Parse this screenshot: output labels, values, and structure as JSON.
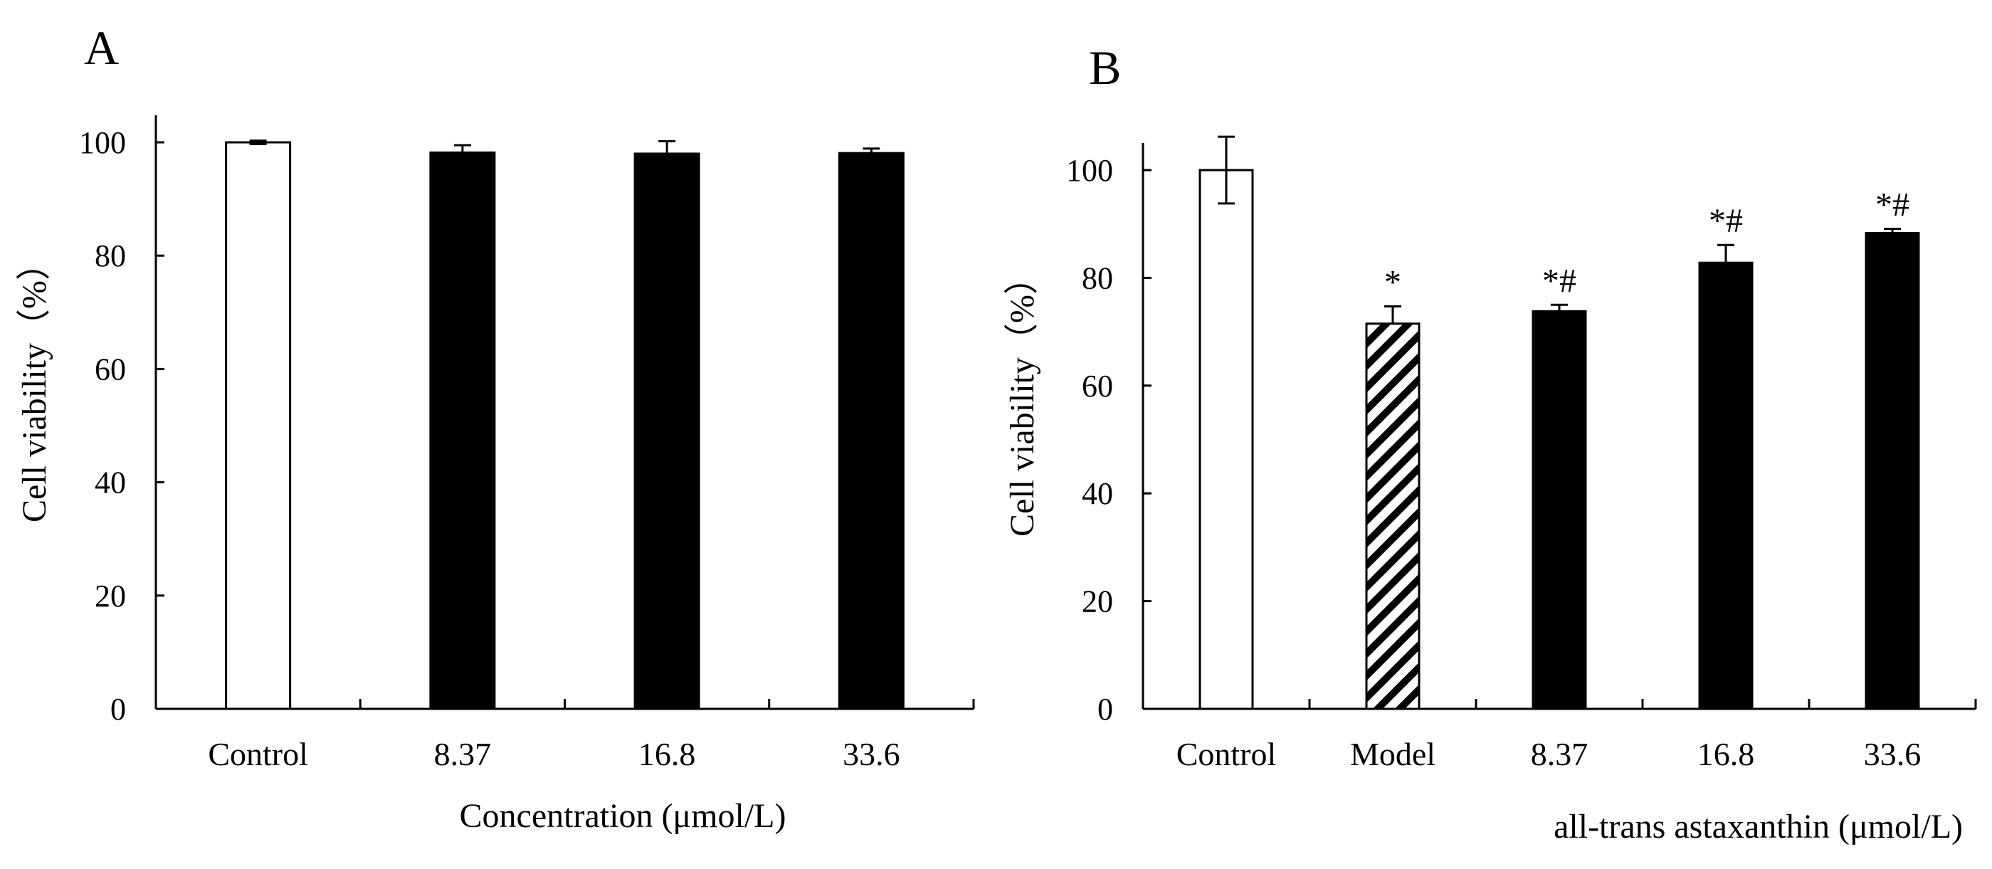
{
  "colors": {
    "axis": "#000000",
    "bar_fill": "#000000",
    "bar_open": "#ffffff"
  },
  "chart_data": [
    {
      "panel_label": "A",
      "type": "bar",
      "categories": [
        "Control",
        "8.37",
        "16.8",
        "33.6"
      ],
      "values": [
        100,
        98.2,
        98,
        98.1
      ],
      "errors": [
        0.3,
        1.3,
        2.2,
        0.8
      ],
      "fills": [
        "open",
        "solid",
        "solid",
        "solid"
      ],
      "markers": [
        "",
        "",
        "",
        ""
      ],
      "ylabel": "Cell viability（%）",
      "xlabel": "Concentration (μmol/L)",
      "ylim": [
        0,
        100
      ],
      "yticks": [
        0,
        20,
        40,
        60,
        80,
        100
      ]
    },
    {
      "panel_label": "B",
      "type": "bar",
      "categories": [
        "Control",
        "Model",
        "8.37",
        "16.8",
        "33.6"
      ],
      "values": [
        100,
        71.5,
        73.8,
        82.8,
        88.3
      ],
      "errors": [
        6.2,
        3.2,
        1.2,
        3.3,
        0.8
      ],
      "fills": [
        "open",
        "hatched",
        "solid",
        "solid",
        "solid"
      ],
      "markers": [
        "",
        "*",
        "*#",
        "*#",
        "*#"
      ],
      "ylabel": "Cell viability（%）",
      "xlabel": "all-trans astaxanthin (μmol/L)",
      "ylim": [
        0,
        100
      ],
      "yticks": [
        0,
        20,
        40,
        60,
        80,
        100
      ]
    }
  ]
}
